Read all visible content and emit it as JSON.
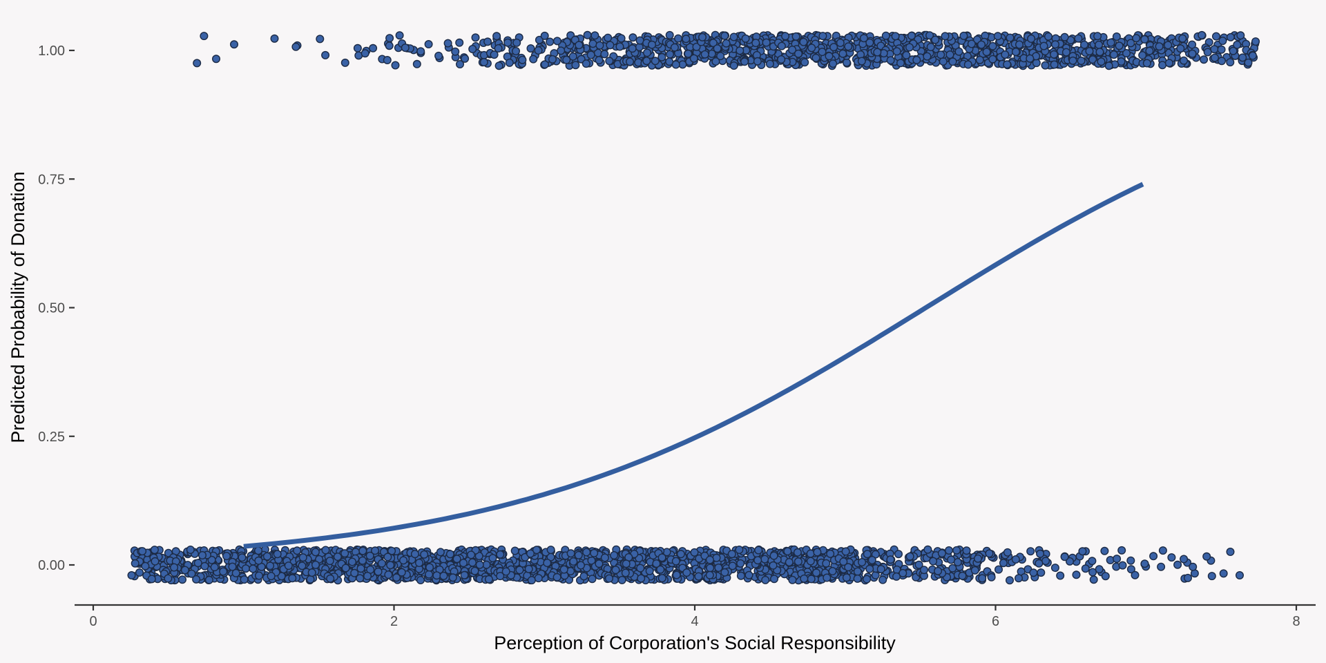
{
  "chart_data": {
    "type": "scatter",
    "title": "",
    "xlabel": "Perception of Corporation's Social Responsibility",
    "ylabel": "Predicted Probability of Donation",
    "xlim": [
      -0.3,
      8.15
    ],
    "ylim": [
      -0.08,
      1.06
    ],
    "x_ticks": [
      0,
      2,
      4,
      6,
      8
    ],
    "x_tick_labels": [
      "0",
      "2",
      "4",
      "6",
      "8"
    ],
    "y_ticks": [
      0,
      0.25,
      0.5,
      0.75,
      1
    ],
    "y_tick_labels": [
      "0.00",
      "0.25",
      "0.50",
      "0.75",
      "1.00"
    ],
    "grid": false,
    "legend": "none",
    "colors": {
      "points": "#3a62a6",
      "point_outline": "#1c2a44",
      "line": "#345e9f",
      "background": "#f8f6f7",
      "axis": "#333333"
    },
    "series": [
      {
        "kind": "jittered-points",
        "outcome": 0,
        "x_range": [
          0.25,
          7.73
        ],
        "n": 1900,
        "density_profile": [
          [
            0.25,
            0.5
          ],
          [
            1,
            0.8
          ],
          [
            2,
            1
          ],
          [
            3,
            1
          ],
          [
            4,
            1
          ],
          [
            4.8,
            1
          ],
          [
            5.2,
            0.6
          ],
          [
            5.8,
            0.5
          ],
          [
            6.2,
            0.25
          ],
          [
            6.8,
            0.12
          ],
          [
            7.73,
            0.04
          ]
        ]
      },
      {
        "kind": "jittered-points",
        "outcome": 1,
        "x_range": [
          0.68,
          7.73
        ],
        "n": 1250,
        "density_profile": [
          [
            0.68,
            0.02
          ],
          [
            1.5,
            0.04
          ],
          [
            2.2,
            0.15
          ],
          [
            3,
            0.4
          ],
          [
            3.3,
            0.7
          ],
          [
            4,
            0.85
          ],
          [
            5,
            1
          ],
          [
            6,
            0.95
          ],
          [
            7,
            0.6
          ],
          [
            7.73,
            0.4
          ]
        ]
      },
      {
        "kind": "logistic-curve",
        "x_range": [
          1.0,
          6.98
        ],
        "points": [
          [
            1.0,
            0.036
          ],
          [
            2.0,
            0.068
          ],
          [
            3.0,
            0.132
          ],
          [
            4.0,
            0.24
          ],
          [
            5.0,
            0.39
          ],
          [
            6.0,
            0.57
          ],
          [
            6.98,
            0.74
          ]
        ]
      }
    ]
  }
}
